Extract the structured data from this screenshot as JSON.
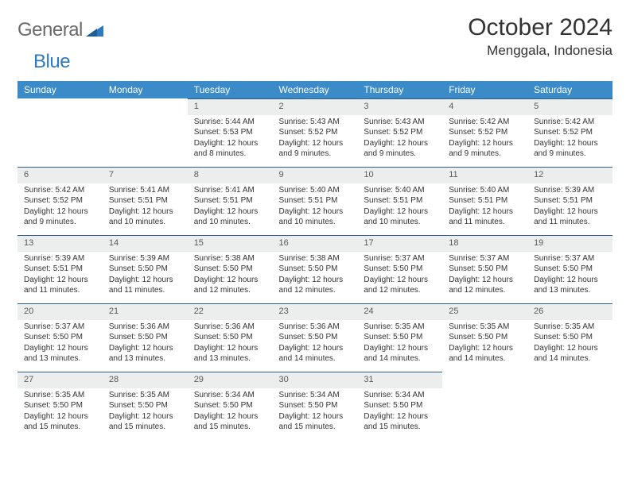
{
  "brand": {
    "word1": "General",
    "word2": "Blue"
  },
  "header": {
    "title": "October 2024",
    "location": "Menggala, Indonesia"
  },
  "colors": {
    "header_bg": "#3b8bc9",
    "header_text": "#ffffff",
    "daynum_bg": "#eceded",
    "row_border": "#2e5d88",
    "logo_gray": "#6a6a6a",
    "logo_blue": "#2f7abf",
    "body_text": "#333333",
    "page_bg": "#ffffff"
  },
  "typography": {
    "title_fontsize": 30,
    "location_fontsize": 17,
    "dayheader_fontsize": 12,
    "daynum_fontsize": 11,
    "cell_fontsize": 10
  },
  "day_headers": [
    "Sunday",
    "Monday",
    "Tuesday",
    "Wednesday",
    "Thursday",
    "Friday",
    "Saturday"
  ],
  "weeks": [
    [
      {
        "empty": true
      },
      {
        "empty": true
      },
      {
        "num": "1",
        "sunrise": "Sunrise: 5:44 AM",
        "sunset": "Sunset: 5:53 PM",
        "daylight1": "Daylight: 12 hours",
        "daylight2": "and 8 minutes."
      },
      {
        "num": "2",
        "sunrise": "Sunrise: 5:43 AM",
        "sunset": "Sunset: 5:52 PM",
        "daylight1": "Daylight: 12 hours",
        "daylight2": "and 9 minutes."
      },
      {
        "num": "3",
        "sunrise": "Sunrise: 5:43 AM",
        "sunset": "Sunset: 5:52 PM",
        "daylight1": "Daylight: 12 hours",
        "daylight2": "and 9 minutes."
      },
      {
        "num": "4",
        "sunrise": "Sunrise: 5:42 AM",
        "sunset": "Sunset: 5:52 PM",
        "daylight1": "Daylight: 12 hours",
        "daylight2": "and 9 minutes."
      },
      {
        "num": "5",
        "sunrise": "Sunrise: 5:42 AM",
        "sunset": "Sunset: 5:52 PM",
        "daylight1": "Daylight: 12 hours",
        "daylight2": "and 9 minutes."
      }
    ],
    [
      {
        "num": "6",
        "sunrise": "Sunrise: 5:42 AM",
        "sunset": "Sunset: 5:52 PM",
        "daylight1": "Daylight: 12 hours",
        "daylight2": "and 9 minutes."
      },
      {
        "num": "7",
        "sunrise": "Sunrise: 5:41 AM",
        "sunset": "Sunset: 5:51 PM",
        "daylight1": "Daylight: 12 hours",
        "daylight2": "and 10 minutes."
      },
      {
        "num": "8",
        "sunrise": "Sunrise: 5:41 AM",
        "sunset": "Sunset: 5:51 PM",
        "daylight1": "Daylight: 12 hours",
        "daylight2": "and 10 minutes."
      },
      {
        "num": "9",
        "sunrise": "Sunrise: 5:40 AM",
        "sunset": "Sunset: 5:51 PM",
        "daylight1": "Daylight: 12 hours",
        "daylight2": "and 10 minutes."
      },
      {
        "num": "10",
        "sunrise": "Sunrise: 5:40 AM",
        "sunset": "Sunset: 5:51 PM",
        "daylight1": "Daylight: 12 hours",
        "daylight2": "and 10 minutes."
      },
      {
        "num": "11",
        "sunrise": "Sunrise: 5:40 AM",
        "sunset": "Sunset: 5:51 PM",
        "daylight1": "Daylight: 12 hours",
        "daylight2": "and 11 minutes."
      },
      {
        "num": "12",
        "sunrise": "Sunrise: 5:39 AM",
        "sunset": "Sunset: 5:51 PM",
        "daylight1": "Daylight: 12 hours",
        "daylight2": "and 11 minutes."
      }
    ],
    [
      {
        "num": "13",
        "sunrise": "Sunrise: 5:39 AM",
        "sunset": "Sunset: 5:51 PM",
        "daylight1": "Daylight: 12 hours",
        "daylight2": "and 11 minutes."
      },
      {
        "num": "14",
        "sunrise": "Sunrise: 5:39 AM",
        "sunset": "Sunset: 5:50 PM",
        "daylight1": "Daylight: 12 hours",
        "daylight2": "and 11 minutes."
      },
      {
        "num": "15",
        "sunrise": "Sunrise: 5:38 AM",
        "sunset": "Sunset: 5:50 PM",
        "daylight1": "Daylight: 12 hours",
        "daylight2": "and 12 minutes."
      },
      {
        "num": "16",
        "sunrise": "Sunrise: 5:38 AM",
        "sunset": "Sunset: 5:50 PM",
        "daylight1": "Daylight: 12 hours",
        "daylight2": "and 12 minutes."
      },
      {
        "num": "17",
        "sunrise": "Sunrise: 5:37 AM",
        "sunset": "Sunset: 5:50 PM",
        "daylight1": "Daylight: 12 hours",
        "daylight2": "and 12 minutes."
      },
      {
        "num": "18",
        "sunrise": "Sunrise: 5:37 AM",
        "sunset": "Sunset: 5:50 PM",
        "daylight1": "Daylight: 12 hours",
        "daylight2": "and 12 minutes."
      },
      {
        "num": "19",
        "sunrise": "Sunrise: 5:37 AM",
        "sunset": "Sunset: 5:50 PM",
        "daylight1": "Daylight: 12 hours",
        "daylight2": "and 13 minutes."
      }
    ],
    [
      {
        "num": "20",
        "sunrise": "Sunrise: 5:37 AM",
        "sunset": "Sunset: 5:50 PM",
        "daylight1": "Daylight: 12 hours",
        "daylight2": "and 13 minutes."
      },
      {
        "num": "21",
        "sunrise": "Sunrise: 5:36 AM",
        "sunset": "Sunset: 5:50 PM",
        "daylight1": "Daylight: 12 hours",
        "daylight2": "and 13 minutes."
      },
      {
        "num": "22",
        "sunrise": "Sunrise: 5:36 AM",
        "sunset": "Sunset: 5:50 PM",
        "daylight1": "Daylight: 12 hours",
        "daylight2": "and 13 minutes."
      },
      {
        "num": "23",
        "sunrise": "Sunrise: 5:36 AM",
        "sunset": "Sunset: 5:50 PM",
        "daylight1": "Daylight: 12 hours",
        "daylight2": "and 14 minutes."
      },
      {
        "num": "24",
        "sunrise": "Sunrise: 5:35 AM",
        "sunset": "Sunset: 5:50 PM",
        "daylight1": "Daylight: 12 hours",
        "daylight2": "and 14 minutes."
      },
      {
        "num": "25",
        "sunrise": "Sunrise: 5:35 AM",
        "sunset": "Sunset: 5:50 PM",
        "daylight1": "Daylight: 12 hours",
        "daylight2": "and 14 minutes."
      },
      {
        "num": "26",
        "sunrise": "Sunrise: 5:35 AM",
        "sunset": "Sunset: 5:50 PM",
        "daylight1": "Daylight: 12 hours",
        "daylight2": "and 14 minutes."
      }
    ],
    [
      {
        "num": "27",
        "sunrise": "Sunrise: 5:35 AM",
        "sunset": "Sunset: 5:50 PM",
        "daylight1": "Daylight: 12 hours",
        "daylight2": "and 15 minutes."
      },
      {
        "num": "28",
        "sunrise": "Sunrise: 5:35 AM",
        "sunset": "Sunset: 5:50 PM",
        "daylight1": "Daylight: 12 hours",
        "daylight2": "and 15 minutes."
      },
      {
        "num": "29",
        "sunrise": "Sunrise: 5:34 AM",
        "sunset": "Sunset: 5:50 PM",
        "daylight1": "Daylight: 12 hours",
        "daylight2": "and 15 minutes."
      },
      {
        "num": "30",
        "sunrise": "Sunrise: 5:34 AM",
        "sunset": "Sunset: 5:50 PM",
        "daylight1": "Daylight: 12 hours",
        "daylight2": "and 15 minutes."
      },
      {
        "num": "31",
        "sunrise": "Sunrise: 5:34 AM",
        "sunset": "Sunset: 5:50 PM",
        "daylight1": "Daylight: 12 hours",
        "daylight2": "and 15 minutes."
      },
      {
        "empty": true
      },
      {
        "empty": true
      }
    ]
  ]
}
